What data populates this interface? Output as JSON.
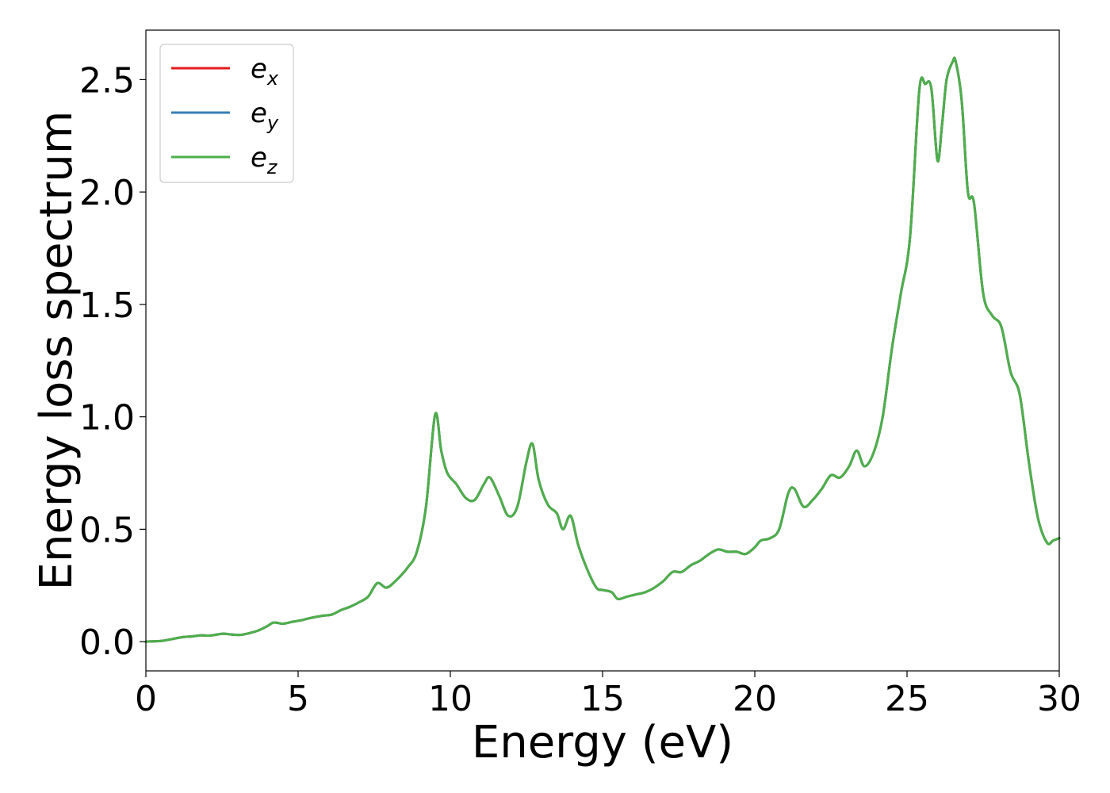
{
  "chart_data": {
    "type": "line",
    "xlabel": "Energy (eV)",
    "ylabel": "Energy loss spectrum",
    "xlim": [
      0,
      30
    ],
    "ylim": [
      -0.13,
      2.72
    ],
    "xticks": [
      0,
      5,
      10,
      15,
      20,
      25,
      30
    ],
    "xtick_labels": [
      "0",
      "5",
      "10",
      "15",
      "20",
      "25",
      "30"
    ],
    "yticks": [
      0.0,
      0.5,
      1.0,
      1.5,
      2.0,
      2.5
    ],
    "ytick_labels": [
      "0.0",
      "0.5",
      "1.0",
      "1.5",
      "2.0",
      "2.5"
    ],
    "grid": false,
    "legend": {
      "placement": "top-left",
      "entries": [
        {
          "base": "e",
          "sub": "x",
          "color": "#e41a1c"
        },
        {
          "base": "e",
          "sub": "y",
          "color": "#377eb8"
        },
        {
          "base": "e",
          "sub": "z",
          "color": "#4daf4a"
        }
      ]
    },
    "x": [
      0,
      0.5,
      0.8,
      1.2,
      1.5,
      1.8,
      2.1,
      2.5,
      2.8,
      3.1,
      3.4,
      3.7,
      4.0,
      4.2,
      4.5,
      4.8,
      5.1,
      5.4,
      5.8,
      6.1,
      6.4,
      6.7,
      7.0,
      7.3,
      7.6,
      7.9,
      8.2,
      8.6,
      8.9,
      9.2,
      9.5,
      9.7,
      9.9,
      10.2,
      10.5,
      10.8,
      11.1,
      11.3,
      11.6,
      11.9,
      12.2,
      12.5,
      12.7,
      12.9,
      13.2,
      13.5,
      13.7,
      13.95,
      14.2,
      14.5,
      14.8,
      15.0,
      15.3,
      15.5,
      15.8,
      16.1,
      16.4,
      16.7,
      17.0,
      17.3,
      17.6,
      17.9,
      18.2,
      18.5,
      18.8,
      19.1,
      19.4,
      19.7,
      20.0,
      20.2,
      20.5,
      20.8,
      21.1,
      21.3,
      21.6,
      21.9,
      22.2,
      22.5,
      22.8,
      23.1,
      23.35,
      23.6,
      23.9,
      24.2,
      24.5,
      24.8,
      25.1,
      25.4,
      25.6,
      25.8,
      26.0,
      26.15,
      26.3,
      26.5,
      26.6,
      26.8,
      27.0,
      27.2,
      27.5,
      27.8,
      28.1,
      28.4,
      28.7,
      29.0,
      29.3,
      29.6,
      29.8,
      30.0
    ],
    "series": [
      {
        "name": "e_x",
        "color": "#e41a1c",
        "values": [
          0,
          0.003,
          0.01,
          0.02,
          0.023,
          0.028,
          0.027,
          0.035,
          0.032,
          0.03,
          0.038,
          0.05,
          0.07,
          0.085,
          0.08,
          0.088,
          0.095,
          0.105,
          0.115,
          0.12,
          0.14,
          0.155,
          0.175,
          0.2,
          0.26,
          0.24,
          0.27,
          0.33,
          0.4,
          0.6,
          1.01,
          0.85,
          0.75,
          0.7,
          0.64,
          0.63,
          0.7,
          0.73,
          0.65,
          0.56,
          0.6,
          0.8,
          0.88,
          0.72,
          0.61,
          0.57,
          0.5,
          0.56,
          0.43,
          0.32,
          0.24,
          0.23,
          0.22,
          0.19,
          0.2,
          0.21,
          0.22,
          0.24,
          0.27,
          0.31,
          0.31,
          0.34,
          0.36,
          0.39,
          0.41,
          0.4,
          0.4,
          0.39,
          0.42,
          0.45,
          0.46,
          0.5,
          0.66,
          0.68,
          0.6,
          0.63,
          0.68,
          0.74,
          0.73,
          0.78,
          0.85,
          0.78,
          0.84,
          1.0,
          1.3,
          1.55,
          1.8,
          2.45,
          2.48,
          2.46,
          2.14,
          2.3,
          2.5,
          2.58,
          2.58,
          2.4,
          2.0,
          1.95,
          1.55,
          1.45,
          1.4,
          1.2,
          1.1,
          0.8,
          0.55,
          0.44,
          0.45,
          0.46
        ]
      },
      {
        "name": "e_y",
        "color": "#377eb8",
        "values": [
          0,
          0.003,
          0.01,
          0.02,
          0.023,
          0.028,
          0.027,
          0.035,
          0.032,
          0.03,
          0.038,
          0.05,
          0.07,
          0.085,
          0.08,
          0.088,
          0.095,
          0.105,
          0.115,
          0.12,
          0.14,
          0.155,
          0.175,
          0.2,
          0.26,
          0.24,
          0.27,
          0.33,
          0.4,
          0.6,
          1.01,
          0.85,
          0.75,
          0.7,
          0.64,
          0.63,
          0.7,
          0.73,
          0.65,
          0.56,
          0.6,
          0.8,
          0.88,
          0.72,
          0.61,
          0.57,
          0.5,
          0.56,
          0.43,
          0.32,
          0.24,
          0.23,
          0.22,
          0.19,
          0.2,
          0.21,
          0.22,
          0.24,
          0.27,
          0.31,
          0.31,
          0.34,
          0.36,
          0.39,
          0.41,
          0.4,
          0.4,
          0.39,
          0.42,
          0.45,
          0.46,
          0.5,
          0.66,
          0.68,
          0.6,
          0.63,
          0.68,
          0.74,
          0.73,
          0.78,
          0.85,
          0.78,
          0.84,
          1.0,
          1.3,
          1.55,
          1.8,
          2.45,
          2.48,
          2.46,
          2.14,
          2.3,
          2.5,
          2.58,
          2.58,
          2.4,
          2.0,
          1.95,
          1.55,
          1.45,
          1.4,
          1.2,
          1.1,
          0.8,
          0.55,
          0.44,
          0.45,
          0.46
        ]
      },
      {
        "name": "e_z",
        "color": "#4daf4a",
        "values": [
          0,
          0.003,
          0.01,
          0.02,
          0.023,
          0.028,
          0.027,
          0.035,
          0.032,
          0.03,
          0.038,
          0.05,
          0.07,
          0.085,
          0.08,
          0.088,
          0.095,
          0.105,
          0.115,
          0.12,
          0.14,
          0.155,
          0.175,
          0.2,
          0.26,
          0.24,
          0.27,
          0.33,
          0.4,
          0.6,
          1.01,
          0.85,
          0.75,
          0.7,
          0.64,
          0.63,
          0.7,
          0.73,
          0.65,
          0.56,
          0.6,
          0.8,
          0.88,
          0.72,
          0.61,
          0.57,
          0.5,
          0.56,
          0.43,
          0.32,
          0.24,
          0.23,
          0.22,
          0.19,
          0.2,
          0.21,
          0.22,
          0.24,
          0.27,
          0.31,
          0.31,
          0.34,
          0.36,
          0.39,
          0.41,
          0.4,
          0.4,
          0.39,
          0.42,
          0.45,
          0.46,
          0.5,
          0.66,
          0.68,
          0.6,
          0.63,
          0.68,
          0.74,
          0.73,
          0.78,
          0.85,
          0.78,
          0.84,
          1.0,
          1.3,
          1.55,
          1.8,
          2.45,
          2.48,
          2.46,
          2.14,
          2.3,
          2.5,
          2.58,
          2.58,
          2.4,
          2.0,
          1.95,
          1.55,
          1.45,
          1.4,
          1.2,
          1.1,
          0.8,
          0.55,
          0.44,
          0.45,
          0.46
        ]
      }
    ]
  }
}
